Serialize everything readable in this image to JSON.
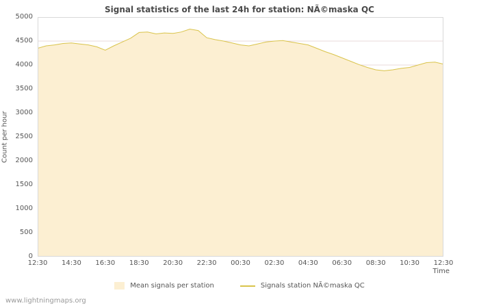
{
  "chart_data": {
    "type": "area",
    "title": "Signal statistics of the last 24h for station: NÃ©maska QC",
    "xlabel": "Time",
    "ylabel": "Count per hour",
    "ylim": [
      0,
      5000
    ],
    "yticks": [
      0,
      500,
      1000,
      1500,
      2000,
      2500,
      3000,
      3500,
      4000,
      4500,
      5000
    ],
    "x_ticklabels": [
      "12:30",
      "14:30",
      "16:30",
      "18:30",
      "20:30",
      "22:30",
      "00:30",
      "02:30",
      "04:30",
      "06:30",
      "08:30",
      "10:30",
      "12:30"
    ],
    "x": [
      "12:30",
      "13:00",
      "13:30",
      "14:00",
      "14:30",
      "15:00",
      "15:30",
      "16:00",
      "16:30",
      "17:00",
      "17:30",
      "18:00",
      "18:30",
      "19:00",
      "19:30",
      "20:00",
      "20:30",
      "21:00",
      "21:30",
      "22:00",
      "22:30",
      "23:00",
      "23:30",
      "00:00",
      "00:30",
      "01:00",
      "01:30",
      "02:00",
      "02:30",
      "03:00",
      "03:30",
      "04:00",
      "04:30",
      "05:00",
      "05:30",
      "06:00",
      "06:30",
      "07:00",
      "07:30",
      "08:00",
      "08:30",
      "09:00",
      "09:30",
      "10:00",
      "10:30",
      "11:00",
      "11:30",
      "12:00",
      "12:30"
    ],
    "series": [
      {
        "name": "Mean signals per station",
        "type": "area",
        "values": [
          4350,
          4400,
          4420,
          4450,
          4460,
          4440,
          4420,
          4380,
          4310,
          4400,
          4480,
          4560,
          4680,
          4690,
          4650,
          4670,
          4660,
          4690,
          4750,
          4720,
          4570,
          4530,
          4500,
          4460,
          4420,
          4400,
          4440,
          4480,
          4500,
          4510,
          4480,
          4450,
          4420,
          4350,
          4280,
          4220,
          4150,
          4080,
          4010,
          3950,
          3900,
          3880,
          3900,
          3930,
          3950,
          4000,
          4050,
          4060,
          4020
        ]
      },
      {
        "name": "Signals station NÃ©maska QC",
        "type": "line",
        "values": [
          4350,
          4400,
          4420,
          4450,
          4460,
          4440,
          4420,
          4380,
          4310,
          4400,
          4480,
          4560,
          4680,
          4690,
          4650,
          4670,
          4660,
          4690,
          4750,
          4720,
          4570,
          4530,
          4500,
          4460,
          4420,
          4400,
          4440,
          4480,
          4500,
          4510,
          4480,
          4450,
          4420,
          4350,
          4280,
          4220,
          4150,
          4080,
          4010,
          3950,
          3900,
          3880,
          3900,
          3930,
          3950,
          4000,
          4050,
          4060,
          4020
        ]
      }
    ],
    "legend": [
      {
        "label": "Mean signals per station",
        "marker": "area-swatch"
      },
      {
        "label": "Signals station NÃ©maska QC",
        "marker": "line-swatch"
      }
    ],
    "legend_position": "bottom-center",
    "grid": "horizontal",
    "colors": {
      "area_fill": "#fcefd2",
      "line": "#d9c34a",
      "grid": "#eadada",
      "axis_box": "#d8d8d8",
      "title_text": "#4a4a4a",
      "tick_text": "#555555",
      "watermark_text": "#999999"
    }
  },
  "footer": {
    "watermark": "www.lightningmaps.org"
  }
}
